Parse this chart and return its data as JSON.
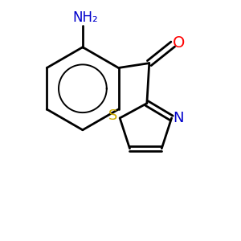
{
  "background_color": "#ffffff",
  "figsize": [
    3.0,
    3.0
  ],
  "dpi": 100,
  "bond_lw": 2.0,
  "bond_color": "#000000",
  "o_color": "#ff0000",
  "s_color": "#ccaa00",
  "n_color": "#0000cc",
  "nh2_color": "#0000cc",
  "xlim": [
    0,
    1
  ],
  "ylim": [
    0,
    1
  ]
}
